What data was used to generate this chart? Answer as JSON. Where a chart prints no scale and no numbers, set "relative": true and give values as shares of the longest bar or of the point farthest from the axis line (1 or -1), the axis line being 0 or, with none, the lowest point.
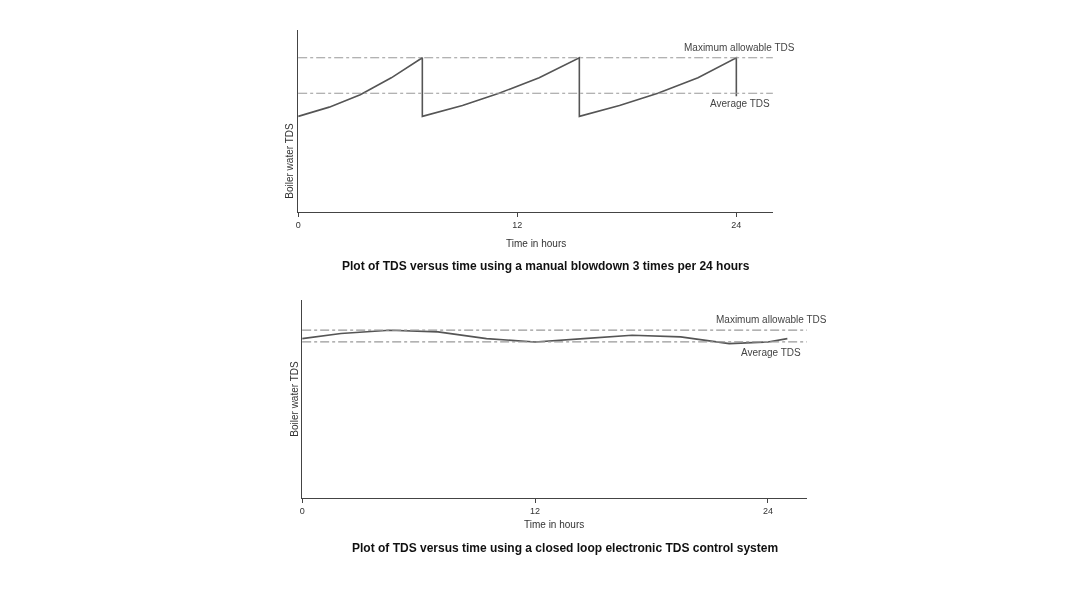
{
  "chart_data": [
    {
      "type": "line",
      "title": "Plot of TDS versus time using a manual blowdown 3 times per 24 hours",
      "xlabel": "Time in hours",
      "ylabel": "Boiler water TDS",
      "relative": true,
      "xlim": [
        0,
        26
      ],
      "xticks": [
        0,
        12,
        24
      ],
      "line_style": "solid",
      "marker": "none",
      "series": [
        {
          "color": "#555555",
          "x": [
            0,
            1.7,
            3.4,
            5.1,
            6.8,
            6.8,
            9,
            11,
            13.2,
            15.4,
            15.4,
            17.6,
            19.7,
            21.9,
            24,
            24
          ],
          "values": [
            0.62,
            0.68,
            0.76,
            0.87,
            1,
            0.62,
            0.69,
            0.77,
            0.87,
            1,
            0.62,
            0.69,
            0.77,
            0.87,
            1,
            0.75
          ]
        }
      ],
      "ref_lines": [
        {
          "axis": "y",
          "value": 1,
          "label": "Maximum allowable TDS",
          "color": "#999999",
          "line_style": "dashed"
        },
        {
          "axis": "y",
          "value": 0.77,
          "label": "Average TDS",
          "color": "#999999",
          "line_style": "dashed"
        }
      ]
    },
    {
      "type": "line",
      "title": "Plot of TDS versus time using a closed loop electronic TDS control system",
      "xlabel": "Time in hours",
      "ylabel": "Boiler water TDS",
      "relative": true,
      "xlim": [
        0,
        26
      ],
      "xticks": [
        0,
        12,
        24
      ],
      "line_style": "solid",
      "marker": "none",
      "series": [
        {
          "color": "#555555",
          "x": [
            0,
            2,
            4.5,
            7,
            9.5,
            12,
            14.5,
            17,
            19.5,
            22,
            24,
            25
          ],
          "values": [
            0.95,
            0.98,
            1,
            0.99,
            0.95,
            0.93,
            0.95,
            0.97,
            0.96,
            0.92,
            0.93,
            0.95
          ]
        }
      ],
      "ref_lines": [
        {
          "axis": "y",
          "value": 1,
          "label": "Maximum allowable TDS",
          "color": "#999999",
          "line_style": "dashed"
        },
        {
          "axis": "y",
          "value": 0.93,
          "label": "Average TDS",
          "color": "#999999",
          "line_style": "dashed"
        }
      ]
    }
  ]
}
